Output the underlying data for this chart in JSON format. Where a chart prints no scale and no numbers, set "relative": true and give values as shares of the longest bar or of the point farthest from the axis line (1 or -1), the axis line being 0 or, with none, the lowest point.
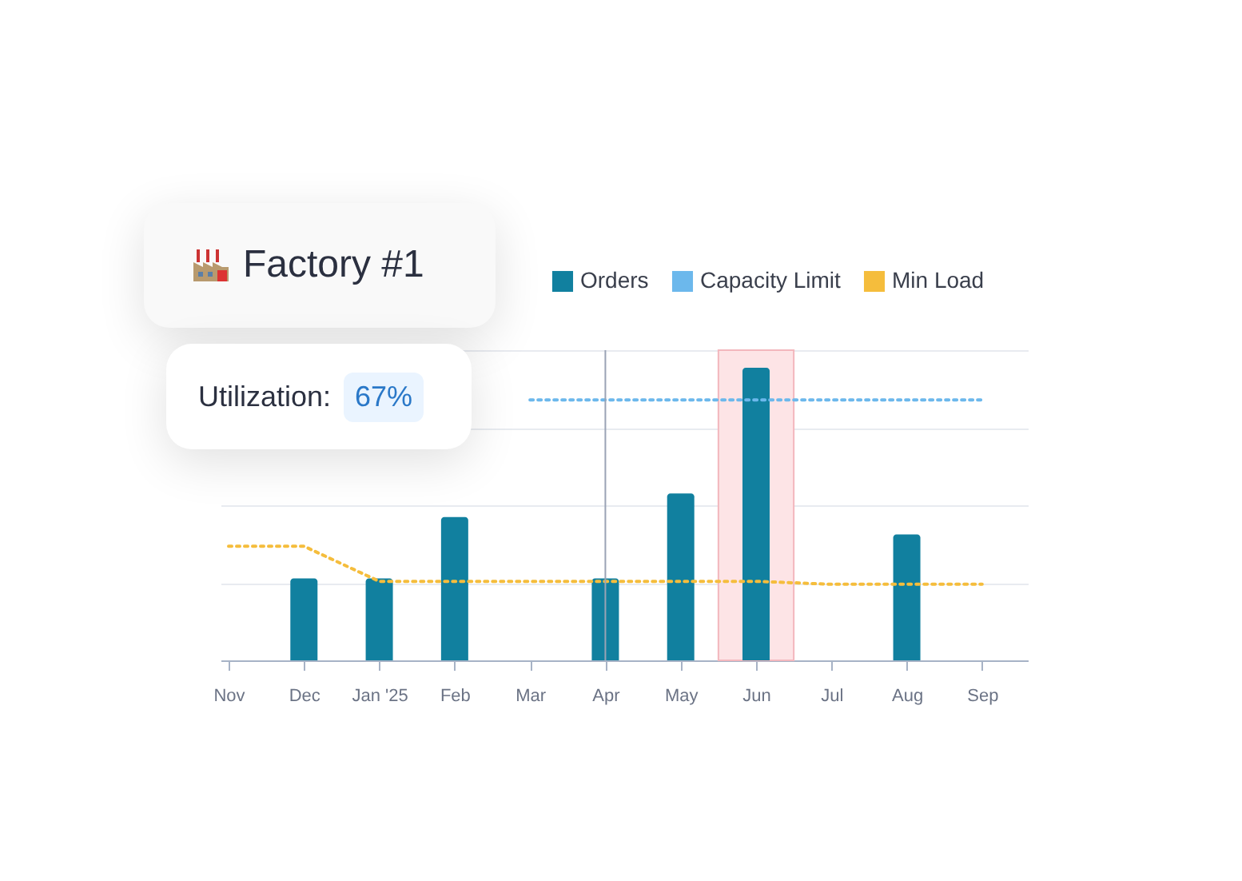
{
  "chart_data": {
    "type": "bar",
    "title": "Factory #1",
    "annotations": [
      "Utilization: 67%"
    ],
    "categories": [
      "Nov",
      "Dec",
      "Jan '25",
      "Feb",
      "Mar",
      "Apr",
      "May",
      "Jun",
      "Jul",
      "Aug",
      "Sep"
    ],
    "relative": true,
    "grid": "y",
    "legend": "top right",
    "series": [
      {
        "name": "Orders",
        "color": "#11809f",
        "values": [
          null,
          0.28,
          0.28,
          0.49,
          null,
          0.28,
          0.57,
          1,
          null,
          0.43,
          null
        ]
      },
      {
        "name": "Capacity Limit",
        "type": "line",
        "color": "#6cb8ec",
        "line_style": "dotted",
        "values": [
          null,
          null,
          null,
          null,
          0.89,
          0.89,
          0.89,
          0.89,
          0.89,
          0.89,
          0.89
        ]
      },
      {
        "name": "Min Load",
        "type": "line",
        "color": "#f5bd3c",
        "line_style": "dotted",
        "values": [
          0.39,
          0.39,
          0.27,
          0.27,
          0.27,
          0.27,
          0.27,
          0.27,
          0.26,
          0.26,
          0.26
        ]
      }
    ],
    "bands": [
      {
        "axis": "x",
        "from": "Jun",
        "to": "Jun",
        "color": "#fde4e6"
      }
    ],
    "ref_lines": [
      {
        "axis": "x",
        "value": "Apr",
        "color": "#9aa3b5"
      }
    ]
  }
}
